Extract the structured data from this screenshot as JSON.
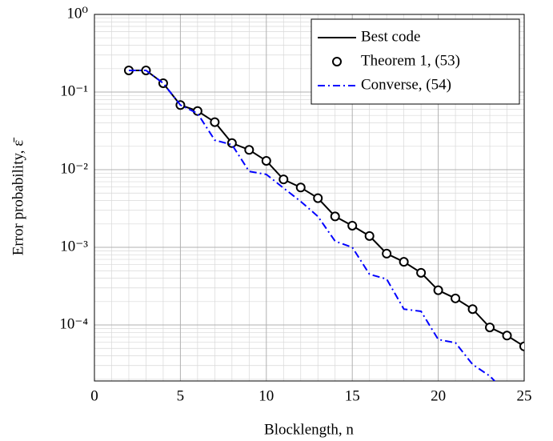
{
  "chart_data": {
    "type": "line",
    "xlabel": "Blocklength, n",
    "ylabel": "Error probability, ε̄",
    "x": [
      2,
      3,
      4,
      5,
      6,
      7,
      8,
      9,
      10,
      11,
      12,
      13,
      14,
      15,
      16,
      17,
      18,
      19,
      20,
      21,
      22,
      23,
      24,
      25
    ],
    "series": [
      {
        "name": "Best code",
        "color": "#000000",
        "line": "solid",
        "marker": "none",
        "values": [
          0.19,
          0.19,
          0.13,
          0.068,
          0.057,
          0.041,
          0.022,
          0.018,
          0.013,
          0.0075,
          0.0059,
          0.0043,
          0.0025,
          0.0019,
          0.0014,
          0.00083,
          0.00065,
          0.00047,
          0.00028,
          0.00022,
          0.00016,
          9.3e-05,
          7.3e-05,
          5.3e-05
        ]
      },
      {
        "name": "Theorem 1, (53)",
        "color": "#000000",
        "line": "none",
        "marker": "circle",
        "values": [
          0.19,
          0.19,
          0.13,
          0.068,
          0.057,
          0.041,
          0.022,
          0.018,
          0.013,
          0.0075,
          0.0059,
          0.0043,
          0.0025,
          0.0019,
          0.0014,
          0.00083,
          0.00065,
          0.00047,
          0.00028,
          0.00022,
          0.00016,
          9.3e-05,
          7.3e-05,
          5.3e-05
        ]
      },
      {
        "name": "Converse, (54)",
        "color": "#0000ff",
        "line": "dashdot",
        "marker": "none",
        "values": [
          0.19,
          0.19,
          0.13,
          0.068,
          0.053,
          0.024,
          0.021,
          0.0095,
          0.0087,
          0.0058,
          0.0039,
          0.0025,
          0.0012,
          0.001,
          0.00045,
          0.00039,
          0.00016,
          0.00015,
          6.5e-05,
          5.9e-05,
          3.1e-05,
          2.2e-05,
          1.3e-05,
          null
        ]
      }
    ],
    "xlim": [
      0,
      25
    ],
    "xticks": [
      0,
      5,
      10,
      15,
      20,
      25
    ],
    "ylim": [
      1.9e-05,
      1
    ],
    "ylog": true,
    "yticks": [
      {
        "value": 1,
        "label": "10⁰"
      },
      {
        "value": 0.1,
        "label": "10⁻¹"
      },
      {
        "value": 0.01,
        "label": "10⁻²"
      },
      {
        "value": 0.001,
        "label": "10⁻³"
      },
      {
        "value": 0.0001,
        "label": "10⁻⁴"
      }
    ],
    "grid": true,
    "minor_grid": true,
    "legend": "upper right"
  }
}
